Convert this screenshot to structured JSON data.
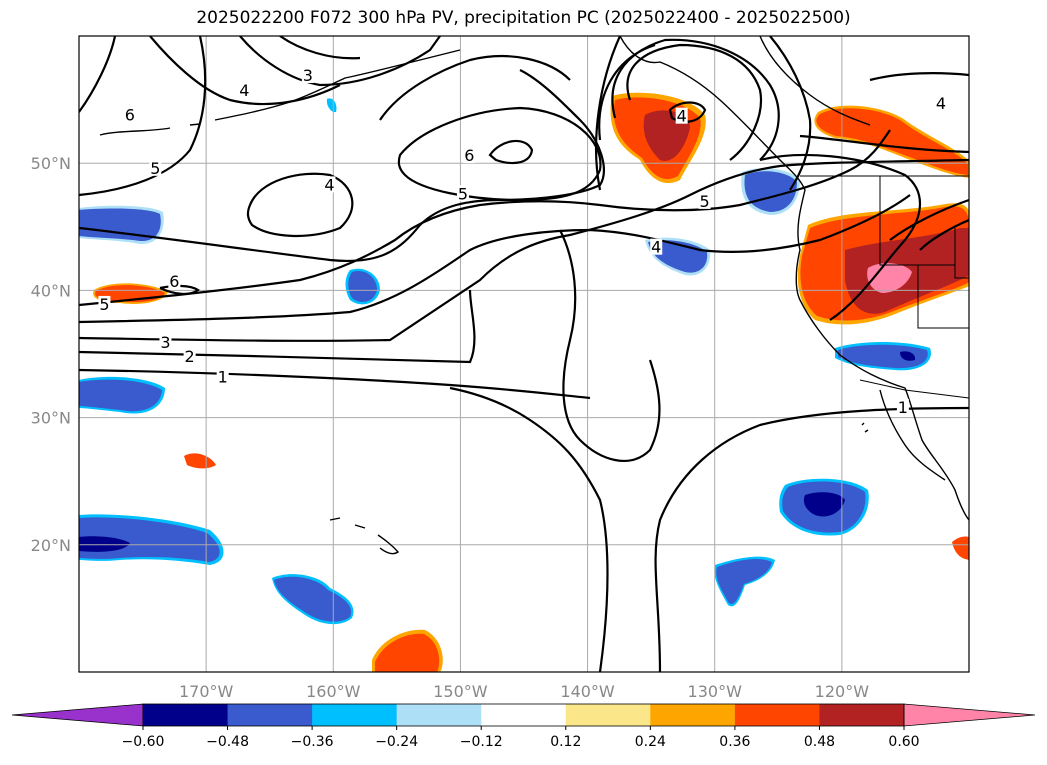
{
  "title": "2025022200 F072 300 hPa PV, precipitation PC (2025022400 - 2025022500)",
  "map": {
    "lon_range": [
      -180,
      -110
    ],
    "lat_range": [
      10,
      60
    ],
    "lat_ticks": [
      {
        "value": 20,
        "label": "20°N"
      },
      {
        "value": 30,
        "label": "30°N"
      },
      {
        "value": 40,
        "label": "40°N"
      },
      {
        "value": 50,
        "label": "50°N"
      }
    ],
    "lon_ticks": [
      {
        "value": -170,
        "label": "170°W"
      },
      {
        "value": -160,
        "label": "160°W"
      },
      {
        "value": -150,
        "label": "150°W"
      },
      {
        "value": -140,
        "label": "140°W"
      },
      {
        "value": -130,
        "label": "130°W"
      },
      {
        "value": -120,
        "label": "120°W"
      }
    ],
    "gridlines": true
  },
  "pv_contour_labels": [
    {
      "text": "6",
      "lon": -176,
      "lat": 53.6
    },
    {
      "text": "5",
      "lon": -174,
      "lat": 49.4
    },
    {
      "text": "4",
      "lon": -167,
      "lat": 55.5
    },
    {
      "text": "3",
      "lon": -162,
      "lat": 56.7
    },
    {
      "text": "6",
      "lon": -149.3,
      "lat": 50.4
    },
    {
      "text": "5",
      "lon": -149.8,
      "lat": 47.4
    },
    {
      "text": "4",
      "lon": -160.3,
      "lat": 48.1
    },
    {
      "text": "5",
      "lon": -130.8,
      "lat": 46.8
    },
    {
      "text": "6",
      "lon": -172.5,
      "lat": 40.5
    },
    {
      "text": "5",
      "lon": -178,
      "lat": 38.7
    },
    {
      "text": "4",
      "lon": -134.6,
      "lat": 43.2
    },
    {
      "text": "3",
      "lon": -173.2,
      "lat": 35.7
    },
    {
      "text": "2",
      "lon": -171.3,
      "lat": 34.6
    },
    {
      "text": "1",
      "lon": -168.7,
      "lat": 33.0
    },
    {
      "text": "1",
      "lon": -115.2,
      "lat": 30.6
    },
    {
      "text": "4",
      "lon": -112.2,
      "lat": 54.5
    },
    {
      "text": "4",
      "lon": -132.6,
      "lat": 53.5
    }
  ],
  "precip_colorbar": {
    "levels": [
      "−0.60",
      "−0.48",
      "−0.36",
      "−0.24",
      "−0.12",
      "0.12",
      "0.24",
      "0.36",
      "0.48",
      "0.60"
    ],
    "colors": [
      "#9932CC",
      "#00008B",
      "#3A5BCD",
      "#00BFFF",
      "#ADDFF7",
      "#FFFFFF",
      "#FBE78A",
      "#FFA500",
      "#FF4500",
      "#B22222",
      "#FF84A8"
    ],
    "extend": "both"
  },
  "precip_colors": {
    "n060": "#00008B",
    "n048": "#3A5BCD",
    "n036": "#00BFFF",
    "n024": "#ADDFF7",
    "p024": "#FBE78A",
    "p036": "#FFA500",
    "p048": "#FF4500",
    "p060": "#B22222",
    "p072": "#FF84A8"
  }
}
